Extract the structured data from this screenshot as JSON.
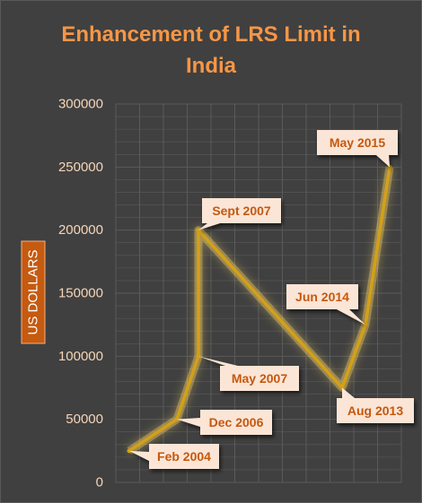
{
  "chart_data": {
    "type": "line",
    "title": [
      "Enhancement of LRS Limit in",
      "India"
    ],
    "ylabel": "US DOLLARS",
    "xlabel": "",
    "ylim": [
      0,
      300000
    ],
    "yticks": [
      "0",
      "50000",
      "100000",
      "150000",
      "200000",
      "250000",
      "300000"
    ],
    "grid": true,
    "series": [
      {
        "points": [
          {
            "label": "Feb 2004",
            "value": 25000
          },
          {
            "label": "Dec 2006",
            "value": 50000
          },
          {
            "label": "May 2007",
            "value": 100000
          },
          {
            "label": "Sept 2007",
            "value": 200000
          },
          {
            "label": "Aug 2013",
            "value": 75000
          },
          {
            "label": "Jun 2014",
            "value": 125000
          },
          {
            "label": "May 2015",
            "value": 250000
          }
        ]
      }
    ],
    "colors": {
      "line": "#d4a017",
      "glow": "#ffd966",
      "title": "#f79646",
      "callout_fill": "#fbe5d6",
      "callout_text": "#c65911",
      "ylabel_bg": "#c55a11",
      "tick": "#f6d6b8",
      "grid": "#5a5a5a"
    }
  }
}
